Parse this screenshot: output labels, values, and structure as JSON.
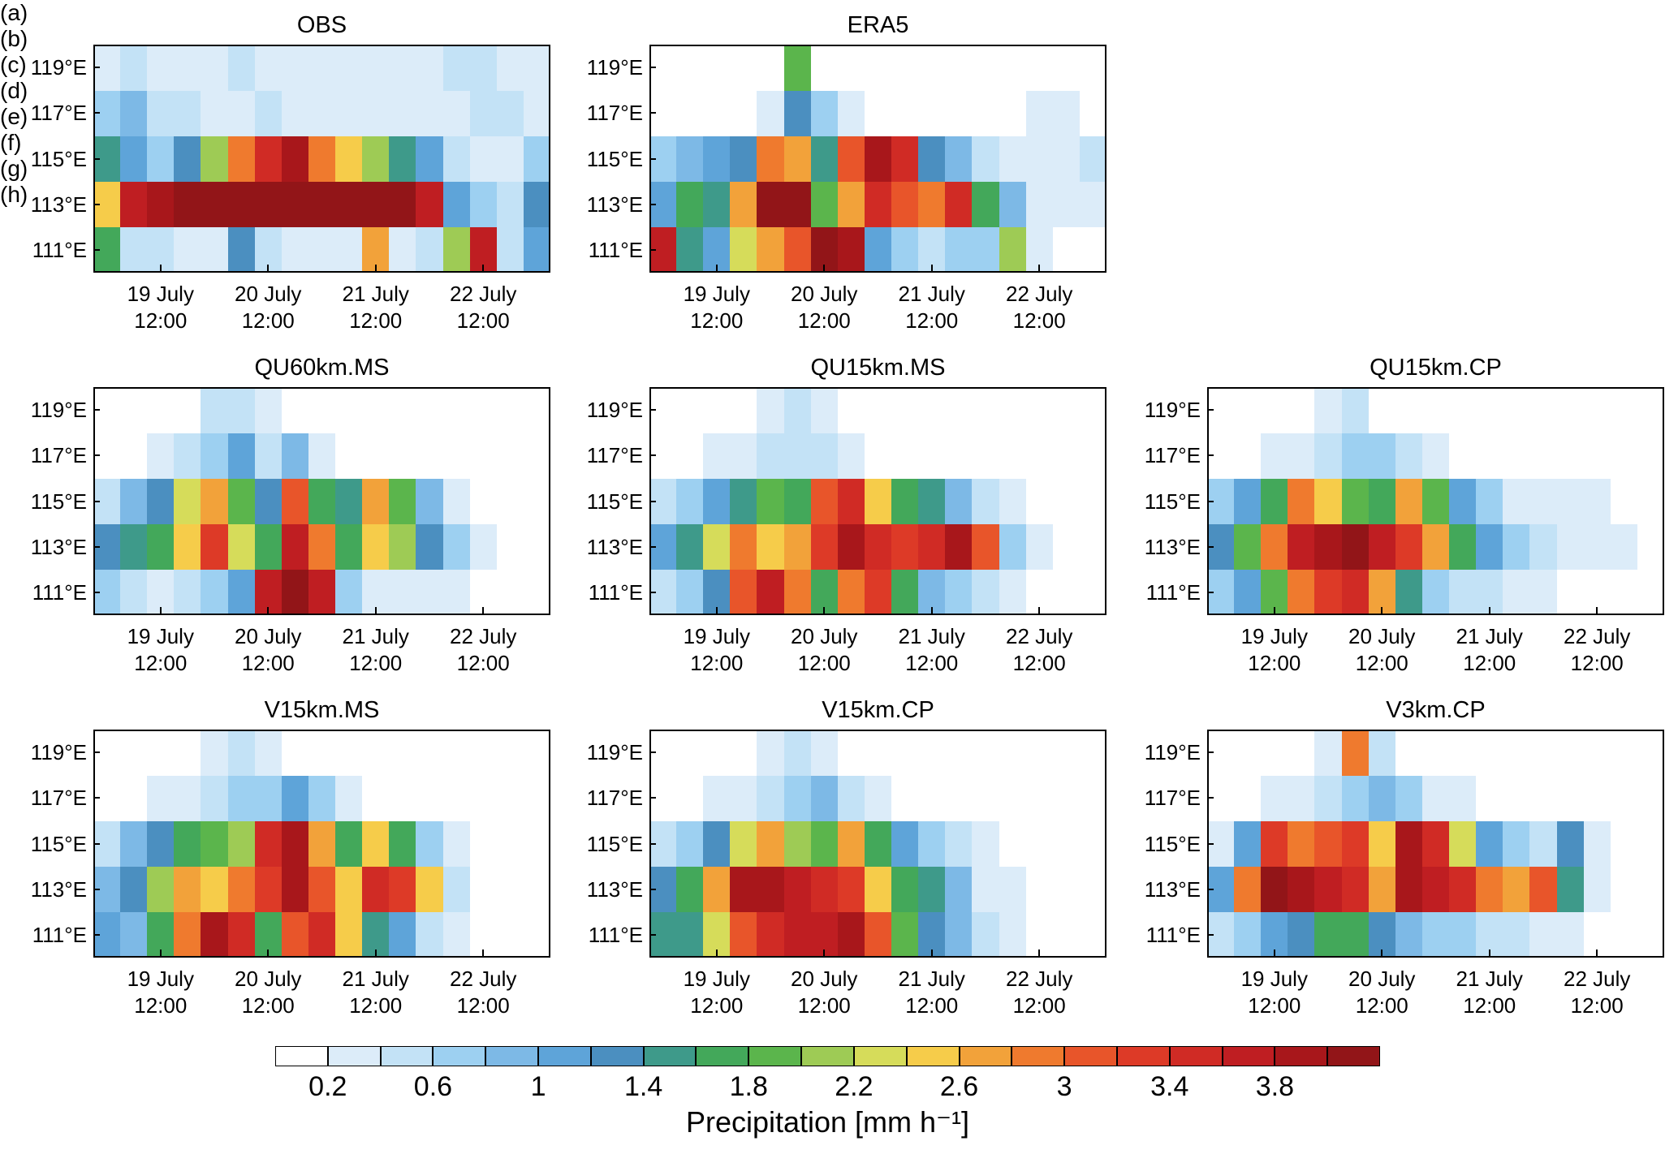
{
  "chart_data": [
    {
      "type": "heatmap",
      "panel_label": "(a)",
      "title": "OBS",
      "categories": [
        null,
        null,
        "19 July\n12:00",
        null,
        null,
        null,
        "20 July\n12:00",
        null,
        null,
        null,
        "21 July\n12:00",
        null,
        null,
        null,
        "22 July\n12:00",
        null,
        null
      ],
      "y": [
        111,
        113,
        115,
        117,
        119
      ],
      "ylim": [
        110,
        120
      ],
      "yticks": [
        {
          "value": 111,
          "label": "111°E"
        },
        {
          "value": 113,
          "label": "113°E"
        },
        {
          "value": 115,
          "label": "115°E"
        },
        {
          "value": 117,
          "label": "117°E"
        },
        {
          "value": 119,
          "label": "119°E"
        }
      ],
      "z": [
        [
          1.6,
          0.4,
          0.4,
          0.2,
          0.2,
          1.2,
          0.4,
          0.2,
          0.2,
          0.2,
          2.6,
          0.2,
          0.4,
          2.0,
          3.6,
          0.4,
          1.0
        ],
        [
          2.4,
          3.6,
          3.8,
          4.0,
          4.0,
          4.0,
          4.0,
          4.0,
          4.0,
          4.0,
          4.0,
          4.0,
          3.6,
          1.0,
          0.6,
          0.4,
          1.2
        ],
        [
          1.4,
          1.0,
          0.6,
          1.2,
          2.0,
          2.8,
          3.4,
          3.8,
          2.8,
          2.4,
          2.0,
          1.4,
          1.0,
          0.4,
          0.2,
          0.2,
          0.6
        ],
        [
          0.6,
          0.8,
          0.4,
          0.4,
          0.2,
          0.2,
          0.4,
          0.2,
          0.2,
          0.2,
          0.2,
          0.2,
          0.2,
          0.2,
          0.4,
          0.4,
          0.2
        ],
        [
          0.2,
          0.4,
          0.2,
          0.2,
          0.2,
          0.4,
          0.2,
          0.2,
          0.2,
          0.2,
          0.2,
          0.2,
          0.2,
          0.4,
          0.4,
          0.2,
          0.2
        ]
      ]
    },
    {
      "type": "heatmap",
      "panel_label": "(b)",
      "title": "ERA5",
      "categories": [
        null,
        null,
        "19 July\n12:00",
        null,
        null,
        null,
        "20 July\n12:00",
        null,
        null,
        null,
        "21 July\n12:00",
        null,
        null,
        null,
        "22 July\n12:00",
        null,
        null
      ],
      "y": [
        111,
        113,
        115,
        117,
        119
      ],
      "ylim": [
        110,
        120
      ],
      "yticks": [
        {
          "value": 111,
          "label": "111°E"
        },
        {
          "value": 113,
          "label": "113°E"
        },
        {
          "value": 115,
          "label": "115°E"
        },
        {
          "value": 117,
          "label": "117°E"
        },
        {
          "value": 119,
          "label": "119°E"
        }
      ],
      "z": [
        [
          3.6,
          1.4,
          1.0,
          2.2,
          2.6,
          3.0,
          4.0,
          3.8,
          1.0,
          0.6,
          0.4,
          0.6,
          0.6,
          2.0,
          0.2,
          0,
          0
        ],
        [
          1.0,
          1.6,
          1.4,
          2.6,
          4.0,
          4.0,
          1.8,
          2.6,
          3.4,
          3.0,
          2.8,
          3.4,
          1.6,
          0.8,
          0.2,
          0.2,
          0.2
        ],
        [
          0.6,
          0.8,
          1.0,
          1.2,
          2.8,
          2.6,
          1.4,
          3.0,
          3.8,
          3.4,
          1.2,
          0.8,
          0.4,
          0.2,
          0.2,
          0.2,
          0.4
        ],
        [
          0,
          0,
          0,
          0,
          0.2,
          1.2,
          0.6,
          0.2,
          0,
          0,
          0,
          0,
          0,
          0,
          0.2,
          0.2,
          0
        ],
        [
          0,
          0,
          0,
          0,
          0,
          1.8,
          0,
          0,
          0,
          0,
          0,
          0,
          0,
          0,
          0,
          0,
          0
        ]
      ]
    },
    {
      "type": "heatmap",
      "panel_label": "(c)",
      "title": "QU60km.MS",
      "categories": [
        null,
        null,
        "19 July\n12:00",
        null,
        null,
        null,
        "20 July\n12:00",
        null,
        null,
        null,
        "21 July\n12:00",
        null,
        null,
        null,
        "22 July\n12:00",
        null,
        null
      ],
      "y": [
        111,
        113,
        115,
        117,
        119
      ],
      "ylim": [
        110,
        120
      ],
      "yticks": [
        {
          "value": 111,
          "label": "111°E"
        },
        {
          "value": 113,
          "label": "113°E"
        },
        {
          "value": 115,
          "label": "115°E"
        },
        {
          "value": 117,
          "label": "117°E"
        },
        {
          "value": 119,
          "label": "119°E"
        }
      ],
      "z": [
        [
          0.6,
          0.4,
          0.2,
          0.4,
          0.6,
          1.0,
          3.6,
          4.0,
          3.6,
          0.6,
          0.2,
          0.2,
          0.2,
          0.2,
          0,
          0,
          0
        ],
        [
          1.2,
          1.4,
          1.6,
          2.4,
          3.2,
          2.2,
          1.6,
          3.6,
          2.8,
          1.6,
          2.4,
          2.0,
          1.2,
          0.6,
          0.2,
          0,
          0
        ],
        [
          0.4,
          0.8,
          1.2,
          2.2,
          2.6,
          1.8,
          1.2,
          3.0,
          1.6,
          1.4,
          2.6,
          1.8,
          0.8,
          0.2,
          0,
          0,
          0
        ],
        [
          0,
          0,
          0.2,
          0.4,
          0.6,
          1.0,
          0.4,
          0.8,
          0.2,
          0,
          0,
          0,
          0,
          0,
          0,
          0,
          0
        ],
        [
          0,
          0,
          0,
          0,
          0.4,
          0.4,
          0.2,
          0,
          0,
          0,
          0,
          0,
          0,
          0,
          0,
          0,
          0
        ]
      ]
    },
    {
      "type": "heatmap",
      "panel_label": "(d)",
      "title": "QU15km.MS",
      "categories": [
        null,
        null,
        "19 July\n12:00",
        null,
        null,
        null,
        "20 July\n12:00",
        null,
        null,
        null,
        "21 July\n12:00",
        null,
        null,
        null,
        "22 July\n12:00",
        null,
        null
      ],
      "y": [
        111,
        113,
        115,
        117,
        119
      ],
      "ylim": [
        110,
        120
      ],
      "yticks": [
        {
          "value": 111,
          "label": "111°E"
        },
        {
          "value": 113,
          "label": "113°E"
        },
        {
          "value": 115,
          "label": "115°E"
        },
        {
          "value": 117,
          "label": "117°E"
        },
        {
          "value": 119,
          "label": "119°E"
        }
      ],
      "z": [
        [
          0.4,
          0.6,
          1.2,
          3.0,
          3.6,
          2.8,
          1.6,
          2.8,
          3.2,
          1.6,
          0.8,
          0.6,
          0.4,
          0.2,
          0,
          0,
          0
        ],
        [
          1.0,
          1.4,
          2.2,
          2.8,
          2.4,
          2.6,
          3.2,
          3.8,
          3.4,
          3.2,
          3.4,
          3.8,
          3.0,
          0.6,
          0.2,
          0,
          0
        ],
        [
          0.4,
          0.6,
          1.0,
          1.4,
          1.8,
          1.6,
          3.0,
          3.4,
          2.4,
          1.6,
          1.4,
          0.8,
          0.4,
          0.2,
          0,
          0,
          0
        ],
        [
          0,
          0,
          0.2,
          0.2,
          0.4,
          0.4,
          0.4,
          0.2,
          0,
          0,
          0,
          0,
          0,
          0,
          0,
          0,
          0
        ],
        [
          0,
          0,
          0,
          0,
          0.2,
          0.4,
          0.2,
          0,
          0,
          0,
          0,
          0,
          0,
          0,
          0,
          0,
          0
        ]
      ]
    },
    {
      "type": "heatmap",
      "panel_label": "(e)",
      "title": "QU15km.CP",
      "categories": [
        null,
        null,
        "19 July\n12:00",
        null,
        null,
        null,
        "20 July\n12:00",
        null,
        null,
        null,
        "21 July\n12:00",
        null,
        null,
        null,
        "22 July\n12:00",
        null,
        null
      ],
      "y": [
        111,
        113,
        115,
        117,
        119
      ],
      "ylim": [
        110,
        120
      ],
      "yticks": [
        {
          "value": 111,
          "label": "111°E"
        },
        {
          "value": 113,
          "label": "113°E"
        },
        {
          "value": 115,
          "label": "115°E"
        },
        {
          "value": 117,
          "label": "117°E"
        },
        {
          "value": 119,
          "label": "119°E"
        }
      ],
      "z": [
        [
          0.6,
          1.0,
          1.8,
          2.8,
          3.2,
          3.4,
          2.6,
          1.4,
          0.6,
          0.4,
          0.4,
          0.2,
          0.2,
          0,
          0,
          0,
          0
        ],
        [
          1.2,
          1.8,
          2.8,
          3.6,
          3.8,
          4.0,
          3.6,
          3.2,
          2.6,
          1.6,
          1.0,
          0.6,
          0.4,
          0.2,
          0.2,
          0.2,
          0
        ],
        [
          0.6,
          1.0,
          1.6,
          2.8,
          2.4,
          1.8,
          1.6,
          2.6,
          1.8,
          1.0,
          0.6,
          0.2,
          0.2,
          0.2,
          0.2,
          0,
          0
        ],
        [
          0,
          0,
          0.2,
          0.2,
          0.4,
          0.6,
          0.6,
          0.4,
          0.2,
          0,
          0,
          0,
          0,
          0,
          0,
          0,
          0
        ],
        [
          0,
          0,
          0,
          0,
          0.2,
          0.4,
          0,
          0,
          0,
          0,
          0,
          0,
          0,
          0,
          0,
          0,
          0
        ]
      ]
    },
    {
      "type": "heatmap",
      "panel_label": "(f)",
      "title": "V15km.MS",
      "categories": [
        null,
        null,
        "19 July\n12:00",
        null,
        null,
        null,
        "20 July\n12:00",
        null,
        null,
        null,
        "21 July\n12:00",
        null,
        null,
        null,
        "22 July\n12:00",
        null,
        null
      ],
      "y": [
        111,
        113,
        115,
        117,
        119
      ],
      "ylim": [
        110,
        120
      ],
      "yticks": [
        {
          "value": 111,
          "label": "111°E"
        },
        {
          "value": 113,
          "label": "113°E"
        },
        {
          "value": 115,
          "label": "115°E"
        },
        {
          "value": 117,
          "label": "117°E"
        },
        {
          "value": 119,
          "label": "119°E"
        }
      ],
      "z": [
        [
          1.0,
          0.8,
          1.6,
          2.8,
          3.8,
          3.4,
          1.6,
          3.0,
          3.4,
          2.4,
          1.4,
          1.0,
          0.4,
          0.2,
          0,
          0,
          0
        ],
        [
          0.8,
          1.2,
          2.0,
          2.6,
          2.4,
          2.8,
          3.2,
          3.8,
          3.0,
          2.4,
          3.4,
          3.2,
          2.4,
          0.4,
          0,
          0,
          0
        ],
        [
          0.4,
          0.8,
          1.2,
          1.6,
          1.8,
          2.0,
          3.4,
          3.8,
          2.6,
          1.6,
          2.4,
          1.6,
          0.6,
          0.2,
          0,
          0,
          0
        ],
        [
          0,
          0,
          0.2,
          0.2,
          0.4,
          0.6,
          0.6,
          1.0,
          0.6,
          0.2,
          0,
          0,
          0,
          0,
          0,
          0,
          0
        ],
        [
          0,
          0,
          0,
          0,
          0.2,
          0.4,
          0.2,
          0,
          0,
          0,
          0,
          0,
          0,
          0,
          0,
          0,
          0
        ]
      ]
    },
    {
      "type": "heatmap",
      "panel_label": "(g)",
      "title": "V15km.CP",
      "categories": [
        null,
        null,
        "19 July\n12:00",
        null,
        null,
        null,
        "20 July\n12:00",
        null,
        null,
        null,
        "21 July\n12:00",
        null,
        null,
        null,
        "22 July\n12:00",
        null,
        null
      ],
      "y": [
        111,
        113,
        115,
        117,
        119
      ],
      "ylim": [
        110,
        120
      ],
      "yticks": [
        {
          "value": 111,
          "label": "111°E"
        },
        {
          "value": 113,
          "label": "113°E"
        },
        {
          "value": 115,
          "label": "115°E"
        },
        {
          "value": 117,
          "label": "117°E"
        },
        {
          "value": 119,
          "label": "119°E"
        }
      ],
      "z": [
        [
          1.4,
          1.4,
          2.2,
          3.0,
          3.4,
          3.6,
          3.6,
          3.8,
          3.0,
          1.8,
          1.2,
          0.8,
          0.4,
          0.2,
          0,
          0,
          0
        ],
        [
          1.2,
          1.6,
          2.6,
          3.8,
          3.8,
          3.6,
          3.4,
          3.2,
          2.4,
          1.6,
          1.4,
          0.8,
          0.2,
          0.2,
          0,
          0,
          0
        ],
        [
          0.4,
          0.6,
          1.2,
          2.2,
          2.6,
          2.0,
          1.8,
          2.6,
          1.6,
          1.0,
          0.6,
          0.4,
          0.2,
          0,
          0,
          0,
          0
        ],
        [
          0,
          0,
          0.2,
          0.2,
          0.4,
          0.6,
          0.8,
          0.4,
          0.2,
          0,
          0,
          0,
          0,
          0,
          0,
          0,
          0
        ],
        [
          0,
          0,
          0,
          0,
          0.2,
          0.4,
          0.2,
          0,
          0,
          0,
          0,
          0,
          0,
          0,
          0,
          0,
          0
        ]
      ]
    },
    {
      "type": "heatmap",
      "panel_label": "(h)",
      "title": "V3km.CP",
      "categories": [
        null,
        null,
        "19 July\n12:00",
        null,
        null,
        null,
        "20 July\n12:00",
        null,
        null,
        null,
        "21 July\n12:00",
        null,
        null,
        null,
        "22 July\n12:00",
        null,
        null
      ],
      "y": [
        111,
        113,
        115,
        117,
        119
      ],
      "ylim": [
        110,
        120
      ],
      "yticks": [
        {
          "value": 111,
          "label": "111°E"
        },
        {
          "value": 113,
          "label": "113°E"
        },
        {
          "value": 115,
          "label": "115°E"
        },
        {
          "value": 117,
          "label": "117°E"
        },
        {
          "value": 119,
          "label": "119°E"
        }
      ],
      "z": [
        [
          0.4,
          0.6,
          1.0,
          1.2,
          1.6,
          1.6,
          1.2,
          0.8,
          0.6,
          0.6,
          0.4,
          0.4,
          0.2,
          0.2,
          0,
          0,
          0
        ],
        [
          1.0,
          2.8,
          4.0,
          3.8,
          3.6,
          3.4,
          2.6,
          3.8,
          3.6,
          3.4,
          2.8,
          2.6,
          3.0,
          1.4,
          0.2,
          0,
          0
        ],
        [
          0.2,
          1.0,
          3.2,
          2.8,
          3.0,
          3.2,
          2.4,
          3.8,
          3.4,
          2.2,
          1.0,
          0.6,
          0.4,
          1.2,
          0.2,
          0,
          0
        ],
        [
          0,
          0,
          0.2,
          0.2,
          0.4,
          0.6,
          0.8,
          0.6,
          0.2,
          0.2,
          0,
          0,
          0,
          0,
          0,
          0,
          0
        ],
        [
          0,
          0,
          0,
          0,
          0.2,
          2.8,
          0.4,
          0,
          0,
          0,
          0,
          0,
          0,
          0,
          0,
          0,
          0
        ]
      ]
    }
  ],
  "colorbar": {
    "label": "Precipitation [mm h⁻¹]",
    "bounds": [
      0.2,
      0.4,
      0.6,
      0.8,
      1,
      1.2,
      1.4,
      1.6,
      1.8,
      2,
      2.2,
      2.4,
      2.6,
      2.8,
      3,
      3.2,
      3.4,
      3.6,
      3.8,
      4
    ],
    "ticks": [
      0.2,
      0.6,
      1,
      1.4,
      1.8,
      2.2,
      2.6,
      3,
      3.4,
      3.8
    ],
    "colors": [
      "#ffffff",
      "#dcecf9",
      "#c3e2f6",
      "#9dd0f1",
      "#7db9e6",
      "#5ea4d9",
      "#4b8fc0",
      "#3e9a8a",
      "#43a85a",
      "#5bb54c",
      "#9ecb55",
      "#d6dc5a",
      "#f6cc4a",
      "#f2a23a",
      "#ef7a2e",
      "#e8552a",
      "#dd3a27",
      "#d02b25",
      "#bf1e22",
      "#a8171b",
      "#921518"
    ]
  }
}
